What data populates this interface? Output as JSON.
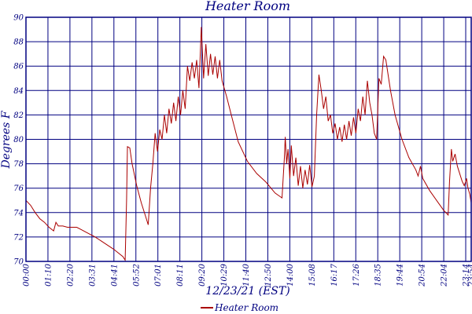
{
  "chart_data": {
    "type": "line",
    "title": "Heater Room",
    "xlabel": "12/23/21 (EST)",
    "ylabel": "Degrees F",
    "ylim": [
      70,
      90
    ],
    "yticks": [
      70,
      72,
      74,
      76,
      78,
      80,
      82,
      84,
      86,
      88,
      90
    ],
    "x_tick_labels": [
      "00:00",
      "01:10",
      "02:20",
      "03:31",
      "04:41",
      "05:52",
      "07:01",
      "08:11",
      "09:20",
      "10:29",
      "11:40",
      "12:50",
      "14:00",
      "15:08",
      "16:17",
      "17:26",
      "18:35",
      "19:44",
      "20:54",
      "22:04",
      "23:14",
      "23:54"
    ],
    "grid": true,
    "legend_position": "bottom",
    "colors": {
      "series": "#aa0000",
      "axis": "#000080",
      "grid": "#000080"
    },
    "series": [
      {
        "name": "Heater Room",
        "points": [
          [
            0,
            75.0
          ],
          [
            10,
            74.6
          ],
          [
            20,
            74.0
          ],
          [
            30,
            73.5
          ],
          [
            40,
            73.2
          ],
          [
            50,
            72.8
          ],
          [
            60,
            72.5
          ],
          [
            65,
            73.2
          ],
          [
            70,
            72.9
          ],
          [
            80,
            72.9
          ],
          [
            90,
            72.8
          ],
          [
            100,
            72.8
          ],
          [
            110,
            72.8
          ],
          [
            120,
            72.6
          ],
          [
            130,
            72.4
          ],
          [
            150,
            72.0
          ],
          [
            170,
            71.5
          ],
          [
            190,
            71.0
          ],
          [
            200,
            70.7
          ],
          [
            210,
            70.4
          ],
          [
            215,
            70.1
          ],
          [
            218,
            75.0
          ],
          [
            220,
            79.4
          ],
          [
            225,
            79.3
          ],
          [
            230,
            78.0
          ],
          [
            240,
            76.2
          ],
          [
            250,
            74.8
          ],
          [
            260,
            73.6
          ],
          [
            265,
            73.0
          ],
          [
            270,
            76.0
          ],
          [
            275,
            78.0
          ],
          [
            280,
            80.5
          ],
          [
            285,
            79.0
          ],
          [
            290,
            80.8
          ],
          [
            295,
            80.0
          ],
          [
            300,
            82.0
          ],
          [
            305,
            80.5
          ],
          [
            310,
            82.5
          ],
          [
            315,
            81.3
          ],
          [
            320,
            83.0
          ],
          [
            325,
            81.5
          ],
          [
            330,
            83.5
          ],
          [
            335,
            82.0
          ],
          [
            340,
            84.0
          ],
          [
            345,
            82.5
          ],
          [
            350,
            86.0
          ],
          [
            355,
            84.8
          ],
          [
            360,
            86.3
          ],
          [
            365,
            85.0
          ],
          [
            370,
            86.5
          ],
          [
            375,
            84.2
          ],
          [
            380,
            89.2
          ],
          [
            385,
            85.0
          ],
          [
            390,
            87.8
          ],
          [
            395,
            85.2
          ],
          [
            400,
            87.0
          ],
          [
            405,
            85.3
          ],
          [
            410,
            86.8
          ],
          [
            415,
            85.0
          ],
          [
            420,
            86.5
          ],
          [
            425,
            84.8
          ],
          [
            435,
            83.5
          ],
          [
            445,
            82.0
          ],
          [
            460,
            79.8
          ],
          [
            480,
            78.2
          ],
          [
            500,
            77.2
          ],
          [
            520,
            76.5
          ],
          [
            540,
            75.6
          ],
          [
            555,
            75.2
          ],
          [
            560,
            78.5
          ],
          [
            562,
            80.2
          ],
          [
            565,
            78.0
          ],
          [
            568,
            79.2
          ],
          [
            572,
            76.8
          ],
          [
            575,
            79.5
          ],
          [
            580,
            77.0
          ],
          [
            585,
            78.5
          ],
          [
            590,
            76.2
          ],
          [
            595,
            77.8
          ],
          [
            600,
            76.0
          ],
          [
            605,
            77.5
          ],
          [
            610,
            76.3
          ],
          [
            615,
            77.9
          ],
          [
            620,
            76.1
          ],
          [
            625,
            77.0
          ],
          [
            630,
            82.0
          ],
          [
            635,
            85.3
          ],
          [
            640,
            84.0
          ],
          [
            645,
            82.5
          ],
          [
            650,
            83.5
          ],
          [
            655,
            81.5
          ],
          [
            660,
            82.0
          ],
          [
            665,
            80.5
          ],
          [
            670,
            81.3
          ],
          [
            675,
            80.0
          ],
          [
            680,
            81.0
          ],
          [
            685,
            79.8
          ],
          [
            690,
            81.2
          ],
          [
            695,
            80.0
          ],
          [
            700,
            81.5
          ],
          [
            705,
            80.3
          ],
          [
            710,
            81.8
          ],
          [
            715,
            80.5
          ],
          [
            720,
            82.5
          ],
          [
            725,
            81.5
          ],
          [
            730,
            83.5
          ],
          [
            735,
            82.0
          ],
          [
            740,
            84.8
          ],
          [
            745,
            83.0
          ],
          [
            750,
            82.0
          ],
          [
            755,
            80.5
          ],
          [
            760,
            80.0
          ],
          [
            765,
            85.0
          ],
          [
            770,
            84.5
          ],
          [
            775,
            86.8
          ],
          [
            780,
            86.5
          ],
          [
            790,
            84.0
          ],
          [
            800,
            82.0
          ],
          [
            815,
            80.0
          ],
          [
            830,
            78.5
          ],
          [
            845,
            77.5
          ],
          [
            850,
            77.0
          ],
          [
            855,
            77.8
          ],
          [
            860,
            76.8
          ],
          [
            875,
            75.8
          ],
          [
            890,
            75.0
          ],
          [
            905,
            74.2
          ],
          [
            915,
            73.8
          ],
          [
            918,
            76.5
          ],
          [
            922,
            79.2
          ],
          [
            925,
            78.2
          ],
          [
            930,
            78.8
          ],
          [
            935,
            77.8
          ],
          [
            945,
            76.6
          ],
          [
            950,
            76.2
          ],
          [
            955,
            76.8
          ],
          [
            958,
            76.0
          ],
          [
            962,
            75.5
          ],
          [
            965,
            74.8
          ]
        ]
      }
    ]
  }
}
